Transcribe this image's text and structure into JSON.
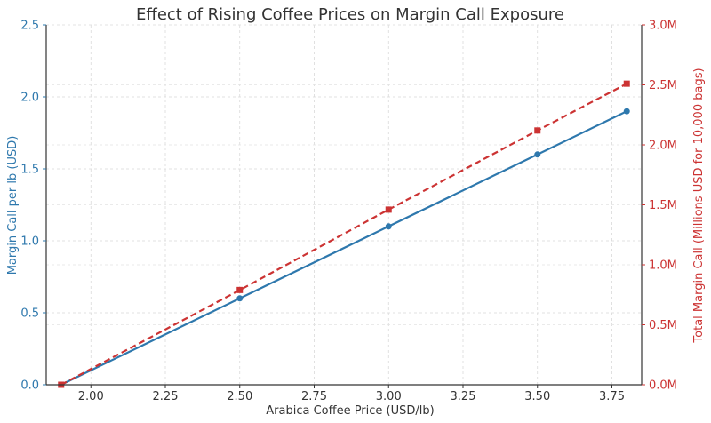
{
  "chart_data": {
    "type": "line",
    "title": "Effect of Rising Coffee Prices on Margin Call Exposure",
    "xlabel": "Arabica Coffee Price (USD/lb)",
    "ylabel": "Margin Call per lb (USD)",
    "y2label": "Total Margin Call (Millions USD for 10,000 bags)",
    "xlim": [
      1.85,
      3.85
    ],
    "ylim": [
      0,
      2.5
    ],
    "y2lim": [
      0,
      3.0
    ],
    "grid": true,
    "x_ticks": [
      2.0,
      2.25,
      2.5,
      2.75,
      3.0,
      3.25,
      3.5,
      3.75
    ],
    "x_tick_labels": [
      "2.00",
      "2.25",
      "2.50",
      "2.75",
      "3.00",
      "3.25",
      "3.50",
      "3.75"
    ],
    "y_ticks": [
      0,
      0.5,
      1.0,
      1.5,
      2.0,
      2.5
    ],
    "y_tick_labels": [
      "0.0",
      "0.5",
      "1.0",
      "1.5",
      "2.0",
      "2.5"
    ],
    "y2_ticks": [
      0,
      0.5,
      1.0,
      1.5,
      2.0,
      2.5,
      3.0
    ],
    "y2_tick_labels": [
      "0.0M",
      "0.5M",
      "1.0M",
      "1.5M",
      "2.0M",
      "2.5M",
      "3.0M"
    ],
    "series": [
      {
        "name": "Margin Call per lb (USD)",
        "axis": "left",
        "color": "#2e78ad",
        "style": "solid",
        "marker": "circle",
        "x": [
          1.9,
          2.5,
          3.0,
          3.5,
          3.8
        ],
        "values": [
          0.0,
          0.6,
          1.1,
          1.6,
          1.9
        ]
      },
      {
        "name": "Total Margin Call (Millions USD)",
        "axis": "right",
        "color": "#cc3333",
        "style": "dashed",
        "marker": "square",
        "x": [
          1.9,
          2.5,
          3.0,
          3.5,
          3.8
        ],
        "values": [
          0.0,
          0.79,
          1.46,
          2.12,
          2.51
        ]
      }
    ]
  }
}
